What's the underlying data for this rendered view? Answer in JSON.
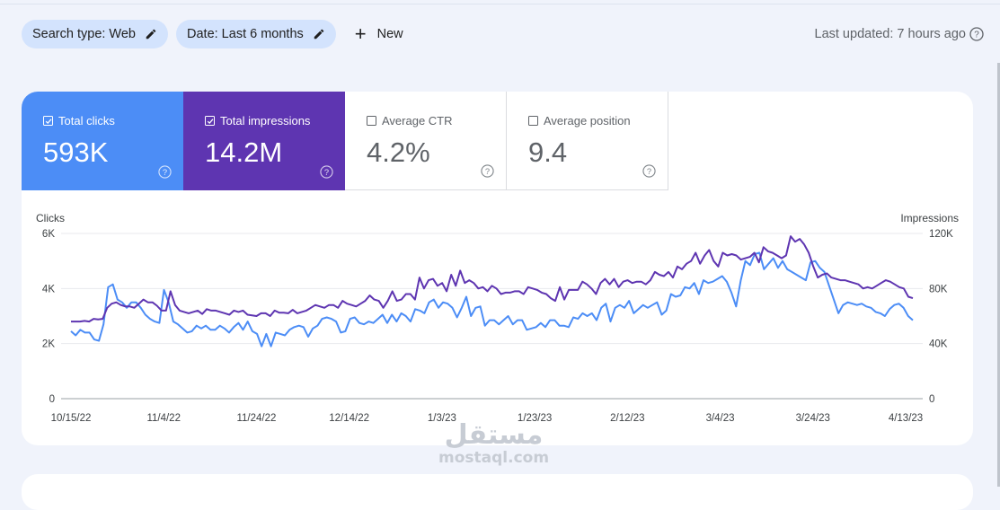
{
  "toolbar": {
    "search_type_chip": "Search type: Web",
    "date_chip": "Date: Last 6 months",
    "new_label": "New",
    "last_updated": "Last updated: 7 hours ago"
  },
  "metrics": [
    {
      "label": "Total clicks",
      "value": "593K",
      "selected": true,
      "color": "#4c8df6"
    },
    {
      "label": "Total impressions",
      "value": "14.2M",
      "selected": true,
      "color": "#5e35b1"
    },
    {
      "label": "Average CTR",
      "value": "4.2%",
      "selected": false
    },
    {
      "label": "Average position",
      "value": "9.4",
      "selected": false
    }
  ],
  "watermark": {
    "arabic": "مستقل",
    "latin": "mostaql.com"
  },
  "chart_data": {
    "type": "line",
    "left_axis_title": "Clicks",
    "right_axis_title": "Impressions",
    "left_ticks": [
      "0",
      "2K",
      "4K",
      "6K"
    ],
    "right_ticks": [
      "0",
      "40K",
      "80K",
      "120K"
    ],
    "ylim_left": [
      0,
      6000
    ],
    "ylim_right": [
      0,
      120000
    ],
    "x_tick_labels": [
      "10/15/22",
      "11/4/22",
      "11/24/22",
      "12/14/22",
      "1/3/23",
      "1/23/23",
      "2/12/23",
      "3/4/23",
      "3/24/23",
      "4/13/23"
    ],
    "grid": true,
    "series": [
      {
        "name": "Total clicks",
        "axis": "left",
        "color": "#4c8df6",
        "values": [
          2450,
          2300,
          2500,
          2400,
          2400,
          2150,
          2100,
          2700,
          4050,
          4150,
          3600,
          3500,
          3300,
          3500,
          3500,
          3300,
          3050,
          2900,
          2800,
          2750,
          3950,
          3500,
          2800,
          2700,
          2550,
          2400,
          2450,
          2650,
          2550,
          2650,
          2500,
          2500,
          2650,
          2550,
          2400,
          2600,
          2750,
          2500,
          2800,
          2450,
          2350,
          1900,
          2350,
          1900,
          2400,
          2350,
          2300,
          2500,
          2600,
          2650,
          2600,
          2250,
          2550,
          2650,
          2900,
          2950,
          2900,
          2800,
          2400,
          2450,
          2900,
          2950,
          2750,
          2700,
          2800,
          2750,
          2900,
          3050,
          2750,
          3050,
          2800,
          3100,
          3000,
          2800,
          3250,
          3200,
          3100,
          3500,
          3600,
          3300,
          3500,
          3450,
          3300,
          2950,
          3300,
          3700,
          3000,
          3300,
          3350,
          2650,
          2850,
          2850,
          2700,
          2850,
          3000,
          2700,
          2850,
          2850,
          2500,
          2550,
          2600,
          2750,
          2600,
          2850,
          2850,
          2650,
          2650,
          2600,
          2950,
          2900,
          3100,
          3000,
          3100,
          2850,
          3300,
          3450,
          2800,
          3300,
          3400,
          3300,
          3550,
          3100,
          3250,
          3400,
          3300,
          3400,
          3500,
          3050,
          3200,
          3800,
          3700,
          3750,
          4050,
          4000,
          4200,
          3800,
          4300,
          4200,
          4250,
          4350,
          4450,
          4250,
          3850,
          3350,
          4300,
          5000,
          4850,
          5250,
          5300,
          4700,
          4900,
          5100,
          4750,
          5000,
          4700,
          4600,
          4500,
          4400,
          4300,
          4950,
          5000,
          4750,
          4600,
          4100,
          3600,
          3100,
          3400,
          3500,
          3450,
          3400,
          3450,
          3350,
          3300,
          3150,
          3100,
          3000,
          3250,
          3400,
          3450,
          3300,
          3000,
          2850
        ]
      },
      {
        "name": "Total impressions",
        "axis": "right",
        "color": "#5e35b1",
        "values": [
          56000,
          56000,
          56000,
          56500,
          56000,
          58000,
          57500,
          58000,
          66000,
          69000,
          70000,
          68000,
          67000,
          67000,
          66000,
          69000,
          72000,
          70000,
          70000,
          67500,
          64000,
          64000,
          78000,
          68000,
          64000,
          63000,
          62000,
          63000,
          64000,
          61500,
          65000,
          64000,
          64000,
          63000,
          62000,
          61000,
          64000,
          63000,
          64000,
          61000,
          60500,
          60000,
          62000,
          62000,
          60000,
          64000,
          62500,
          62500,
          62000,
          64500,
          62000,
          63000,
          64000,
          66000,
          68000,
          67000,
          66000,
          68000,
          68000,
          66000,
          71000,
          69000,
          68000,
          67000,
          69000,
          71000,
          75000,
          72000,
          71000,
          66000,
          71000,
          78000,
          71000,
          72000,
          76000,
          76000,
          72000,
          88000,
          80000,
          86000,
          87000,
          82000,
          84000,
          78000,
          90000,
          82000,
          93000,
          84000,
          86000,
          84000,
          80000,
          81000,
          78000,
          82000,
          80000,
          76000,
          77000,
          77000,
          78000,
          78000,
          76000,
          81000,
          80000,
          79000,
          77000,
          76000,
          73000,
          71000,
          81000,
          72000,
          79000,
          79000,
          79000,
          85000,
          83000,
          80000,
          76000,
          84000,
          87000,
          83000,
          87000,
          81000,
          85000,
          86000,
          84000,
          85000,
          85000,
          83000,
          86000,
          92000,
          90000,
          89000,
          92000,
          88000,
          96000,
          94000,
          98000,
          100000,
          106000,
          98000,
          104000,
          108000,
          100000,
          96000,
          106000,
          104000,
          105000,
          104000,
          101000,
          102000,
          103000,
          106000,
          99000,
          110000,
          107000,
          106000,
          104000,
          102000,
          104000,
          118000,
          114000,
          116000,
          112000,
          106000,
          96000,
          88000,
          90000,
          91000,
          88000,
          87000,
          86000,
          86000,
          85000,
          84000,
          83000,
          80000,
          81000,
          80000,
          82000,
          84000,
          86000,
          85000,
          83000,
          81000,
          80000,
          74000,
          73000
        ]
      }
    ]
  }
}
